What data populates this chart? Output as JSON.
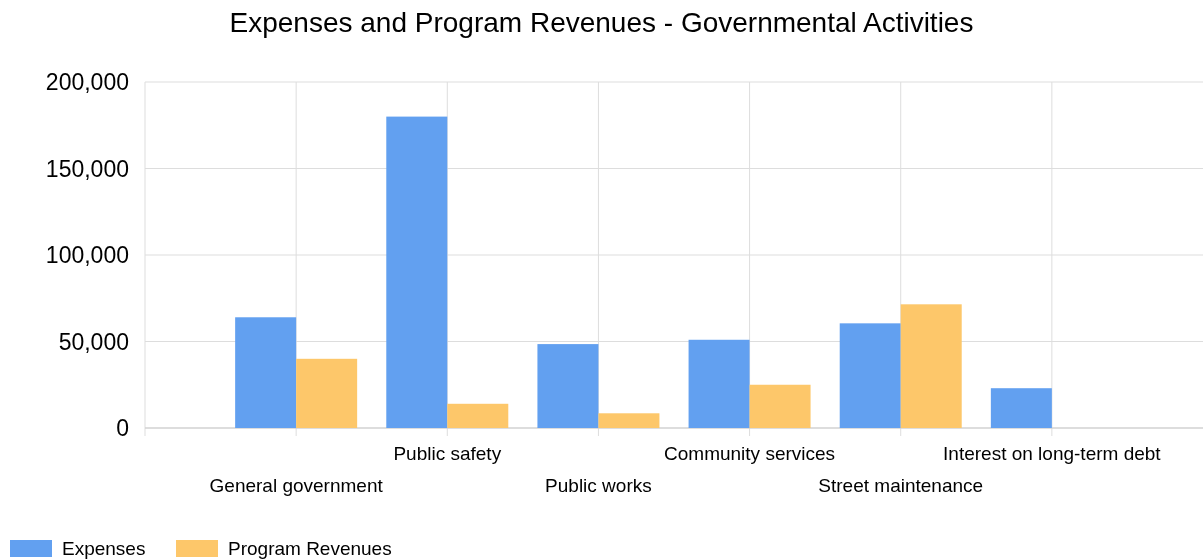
{
  "chart_data": {
    "type": "bar",
    "title": "Expenses and Program Revenues - Governmental Activities",
    "categories": [
      "General government",
      "Public safety",
      "Public works",
      "Community services",
      "Street maintenance",
      "Interest on long-term debt"
    ],
    "series": [
      {
        "name": "Expenses",
        "color": "#62a0f0",
        "values": [
          64000,
          180000,
          48500,
          51000,
          60500,
          23000
        ]
      },
      {
        "name": "Program Revenues",
        "color": "#fdc76a",
        "values": [
          40000,
          14000,
          8500,
          25000,
          71500,
          0
        ]
      }
    ],
    "ylim": [
      0,
      200000
    ],
    "yticks": [
      {
        "value": 0,
        "label": "0"
      },
      {
        "value": 50000,
        "label": "50,000"
      },
      {
        "value": 100000,
        "label": "100,000"
      },
      {
        "value": 150000,
        "label": "150,000"
      },
      {
        "value": 200000,
        "label": "200,000"
      }
    ],
    "grid": true,
    "legend": "bottom"
  }
}
